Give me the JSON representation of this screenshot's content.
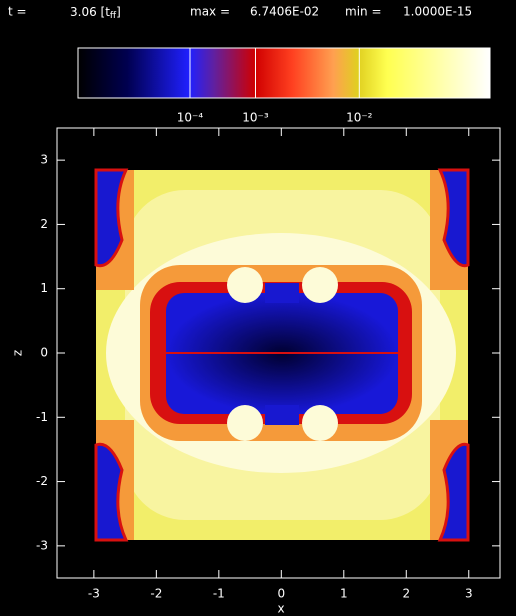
{
  "chart_data": {
    "type": "image",
    "time_prefix": "t =",
    "time_parts": [
      "3.06 [t",
      "ff",
      "]"
    ],
    "max_prefix": "max =",
    "max": {
      "value": 0.067406,
      "label": "6.7406E-02"
    },
    "min_prefix": "min =",
    "min": {
      "value": 1e-15,
      "label": "1.0000E-15"
    },
    "color_exponent": 0.2,
    "colorbar_ticks": [
      {
        "value": 0.0001,
        "label": "10⁻⁴"
      },
      {
        "value": 0.001,
        "label": "10⁻³"
      },
      {
        "value": 0.01,
        "label": "10⁻²"
      }
    ],
    "x_label": "x",
    "y_label": "z",
    "xlim": [
      -3.59,
      3.5
    ],
    "ylim": [
      -3.5,
      3.5
    ],
    "xticks": [
      -3,
      -2,
      -1,
      0,
      1,
      2,
      3
    ],
    "yticks": [
      -3,
      -2,
      -1,
      0,
      1,
      2,
      3
    ]
  }
}
